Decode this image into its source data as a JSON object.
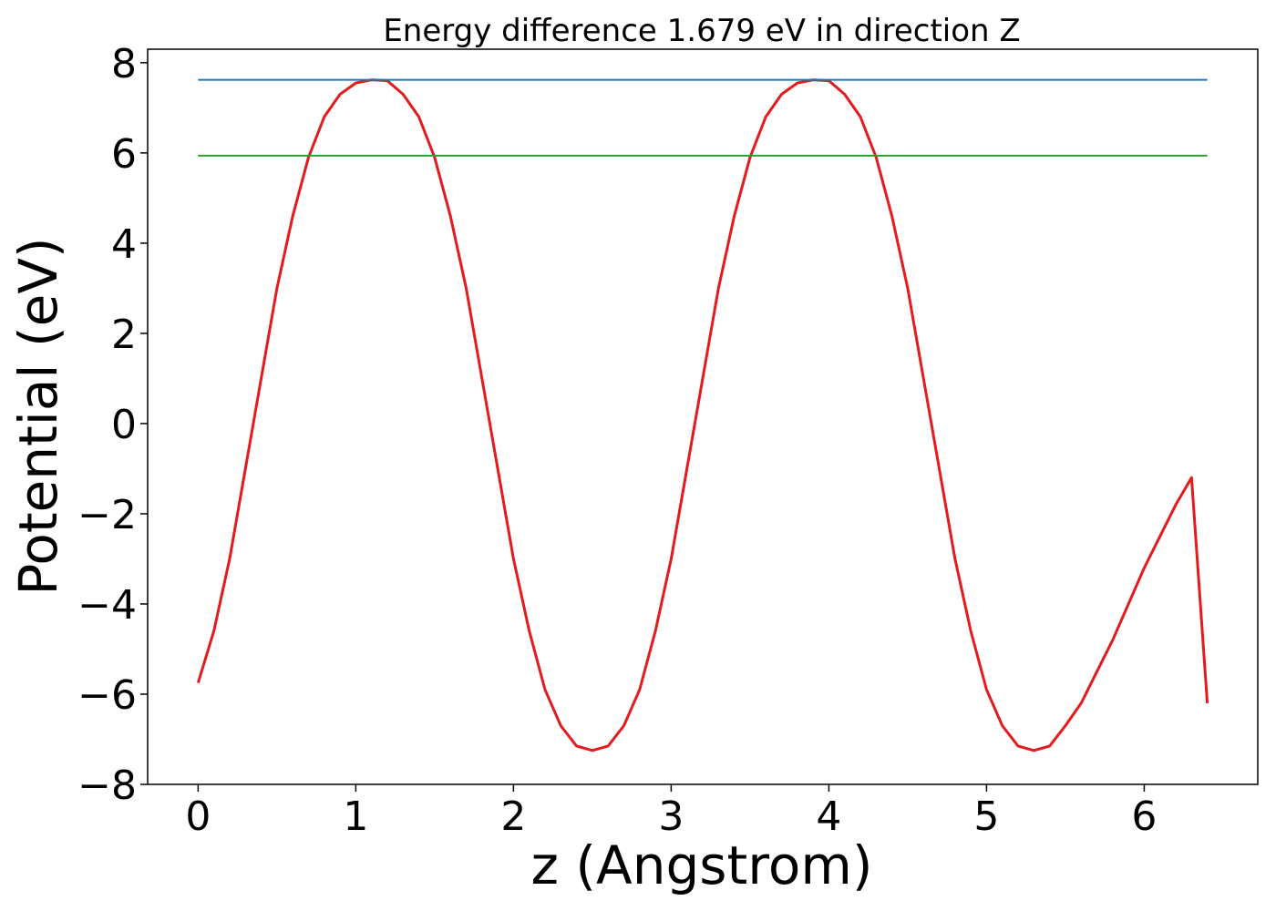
{
  "chart_data": {
    "type": "line",
    "title": "Energy difference 1.679 eV in direction Z",
    "xlabel": "z (Angstrom)",
    "ylabel": "Potential (eV)",
    "xlim": [
      -0.32,
      6.72
    ],
    "ylim": [
      -8,
      8.3
    ],
    "xticks": [
      0,
      1,
      2,
      3,
      4,
      5,
      6
    ],
    "yticks": [
      -8,
      -6,
      -4,
      -2,
      0,
      2,
      4,
      6,
      8
    ],
    "xtick_labels": [
      "0",
      "1",
      "2",
      "3",
      "4",
      "5",
      "6"
    ],
    "ytick_labels": [
      "−8",
      "−6",
      "−4",
      "−2",
      "0",
      "2",
      "4",
      "6",
      "8"
    ],
    "grid": false,
    "series": [
      {
        "color": "#e41a1c",
        "x": [
          0.0,
          0.1,
          0.2,
          0.3,
          0.4,
          0.5,
          0.6,
          0.7,
          0.8,
          0.9,
          1.0,
          1.1,
          1.2,
          1.3,
          1.4,
          1.5,
          1.6,
          1.7,
          1.8,
          1.9,
          2.0,
          2.1,
          2.2,
          2.3,
          2.4,
          2.5,
          2.6,
          2.7,
          2.8,
          2.9,
          3.0,
          3.1,
          3.2,
          3.3,
          3.4,
          3.5,
          3.6,
          3.7,
          3.8,
          3.9,
          4.0,
          4.1,
          4.2,
          4.3,
          4.4,
          4.5,
          4.6,
          4.7,
          4.8,
          4.9,
          5.0,
          5.1,
          5.2,
          5.3,
          5.4,
          5.5,
          5.6,
          5.7,
          5.8,
          5.9,
          6.0,
          6.1,
          6.2,
          6.3,
          6.4
        ],
        "y": [
          -5.75,
          -4.6,
          -3.0,
          -1.0,
          1.0,
          3.0,
          4.6,
          5.9,
          6.8,
          7.3,
          7.55,
          7.62,
          7.6,
          7.3,
          6.8,
          5.9,
          4.6,
          3.0,
          1.0,
          -1.0,
          -3.0,
          -4.6,
          -5.9,
          -6.7,
          -7.15,
          -7.25,
          -7.15,
          -6.7,
          -5.9,
          -4.6,
          -3.0,
          -1.0,
          1.0,
          3.0,
          4.6,
          5.9,
          6.8,
          7.3,
          7.55,
          7.62,
          7.6,
          7.3,
          6.8,
          5.9,
          4.6,
          3.0,
          1.0,
          -1.0,
          -3.0,
          -4.6,
          -5.9,
          -6.7,
          -7.15,
          -7.25,
          -7.15,
          -6.7,
          -6.2,
          -5.5,
          -4.8,
          -4.0,
          -3.2,
          -2.5,
          -1.8,
          -1.2,
          -6.2
        ]
      },
      {
        "color": "#1f77b4",
        "x": [
          0.0,
          6.4
        ],
        "y": [
          7.62,
          7.62
        ]
      },
      {
        "color": "#2ca02c",
        "x": [
          0.0,
          6.4
        ],
        "y": [
          5.94,
          5.94
        ]
      }
    ]
  }
}
